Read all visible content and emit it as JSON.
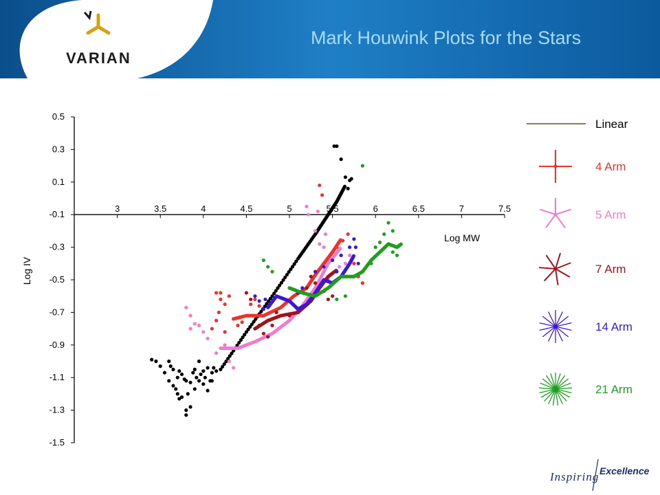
{
  "slide": {
    "title": "Mark Houwink Plots for the Stars",
    "logo_text": "VARIAN",
    "tagline_left": "Inspiring",
    "tagline_right": "Excellence"
  },
  "colors": {
    "banner_dark": "#0d5a9c",
    "banner_light": "#2a8ad0",
    "title": "#a9dbf5",
    "logo_gold": "#d4a017",
    "linear": "#8c7a52",
    "arm4": "#e8342a",
    "arm5": "#f07ccf",
    "arm7": "#a3121c",
    "arm14": "#3a19d6",
    "arm21": "#1f9e1f",
    "black": "#000000"
  },
  "chart_data": {
    "type": "scatter",
    "xlabel": "Log MW",
    "ylabel": "Log IV",
    "xlim": [
      2.5,
      7.5
    ],
    "ylim": [
      -1.5,
      0.5
    ],
    "x_ticks": [
      "3",
      "3.5",
      "4",
      "4.5",
      "5",
      "5.5",
      "6",
      "6.5",
      "7",
      "7.5"
    ],
    "y_ticks": [
      "0.5",
      "0.3",
      "0.1",
      "-0.1",
      "-0.3",
      "-0.5",
      "-0.7",
      "-0.9",
      "-1.1",
      "-1.3",
      "-1.5"
    ],
    "grid": false,
    "legend_position": "right",
    "legend": [
      {
        "label": "Linear",
        "color": "#8c7a52",
        "arms": 0
      },
      {
        "label": "4 Arm",
        "color": "#e8342a",
        "arms": 4
      },
      {
        "label": "5 Arm",
        "color": "#f07ccf",
        "arms": 5
      },
      {
        "label": "7 Arm",
        "color": "#a3121c",
        "arms": 7
      },
      {
        "label": "14 Arm",
        "color": "#3a19d6",
        "arms": 14
      },
      {
        "label": "21 Arm",
        "color": "#1f9e1f",
        "arms": 21
      }
    ],
    "series": [
      {
        "name": "Linear",
        "color": "#000000",
        "segments": [
          [
            [
              4.2,
              -1.05
            ],
            [
              4.5,
              -0.82
            ],
            [
              4.8,
              -0.6
            ],
            [
              5.1,
              -0.37
            ],
            [
              5.3,
              -0.22
            ],
            [
              5.45,
              -0.1
            ],
            [
              5.55,
              -0.02
            ],
            [
              5.65,
              0.08
            ]
          ]
        ],
        "scatter": [
          [
            3.4,
            -0.99
          ],
          [
            3.45,
            -1.0
          ],
          [
            3.5,
            -1.03
          ],
          [
            3.55,
            -1.07
          ],
          [
            3.6,
            -1.0
          ],
          [
            3.6,
            -1.12
          ],
          [
            3.65,
            -1.15
          ],
          [
            3.65,
            -1.05
          ],
          [
            3.7,
            -1.1
          ],
          [
            3.72,
            -1.06
          ],
          [
            3.75,
            -1.08
          ],
          [
            3.78,
            -1.11
          ],
          [
            3.8,
            -1.12
          ],
          [
            3.82,
            -1.2
          ],
          [
            3.85,
            -1.13
          ],
          [
            3.88,
            -1.07
          ],
          [
            3.9,
            -1.05
          ],
          [
            3.92,
            -1.1
          ],
          [
            3.95,
            -1.12
          ],
          [
            3.97,
            -1.08
          ],
          [
            4.0,
            -1.06
          ],
          [
            4.02,
            -1.1
          ],
          [
            4.05,
            -1.04
          ],
          [
            4.08,
            -1.12
          ],
          [
            4.1,
            -1.07
          ],
          [
            4.12,
            -1.04
          ],
          [
            4.15,
            -1.06
          ],
          [
            3.7,
            -1.2
          ],
          [
            3.72,
            -1.23
          ],
          [
            3.75,
            -1.22
          ],
          [
            3.8,
            -1.3
          ],
          [
            3.8,
            -1.33
          ],
          [
            3.85,
            -1.28
          ],
          [
            3.9,
            -1.17
          ],
          [
            4.0,
            -1.14
          ],
          [
            4.05,
            -1.18
          ],
          [
            3.62,
            -1.03
          ],
          [
            3.68,
            -1.17
          ],
          [
            3.95,
            -1.0
          ],
          [
            4.1,
            -1.12
          ],
          [
            5.52,
            0.32
          ],
          [
            5.55,
            0.32
          ],
          [
            5.6,
            0.24
          ],
          [
            5.65,
            0.13
          ],
          [
            5.7,
            0.11
          ],
          [
            5.68,
            0.06
          ],
          [
            5.72,
            0.12
          ]
        ]
      },
      {
        "name": "4 Arm",
        "color": "#e8342a",
        "segments": [
          [
            [
              4.35,
              -0.74
            ],
            [
              4.5,
              -0.72
            ],
            [
              4.7,
              -0.72
            ],
            [
              4.9,
              -0.67
            ],
            [
              5.05,
              -0.6
            ],
            [
              5.2,
              -0.55
            ],
            [
              5.3,
              -0.47
            ],
            [
              5.4,
              -0.4
            ],
            [
              5.5,
              -0.33
            ],
            [
              5.6,
              -0.25
            ]
          ]
        ],
        "scatter": [
          [
            4.15,
            -0.58
          ],
          [
            4.2,
            -0.62
          ],
          [
            4.25,
            -0.65
          ],
          [
            4.2,
            -0.58
          ],
          [
            4.18,
            -0.7
          ],
          [
            4.15,
            -0.75
          ],
          [
            4.1,
            -0.8
          ],
          [
            4.3,
            -0.6
          ],
          [
            4.25,
            -0.82
          ],
          [
            4.6,
            -0.62
          ],
          [
            4.65,
            -0.66
          ],
          [
            4.55,
            -0.65
          ],
          [
            5.35,
            0.08
          ],
          [
            5.38,
            0.02
          ],
          [
            5.55,
            -0.3
          ],
          [
            5.62,
            -0.26
          ],
          [
            5.68,
            -0.22
          ],
          [
            5.75,
            -0.4
          ],
          [
            5.8,
            -0.48
          ],
          [
            5.85,
            -0.52
          ],
          [
            4.4,
            -0.78
          ],
          [
            4.45,
            -0.76
          ]
        ]
      },
      {
        "name": "5 Arm",
        "color": "#f07ccf",
        "segments": [
          [
            [
              4.2,
              -0.92
            ],
            [
              4.4,
              -0.92
            ],
            [
              4.6,
              -0.88
            ],
            [
              4.8,
              -0.83
            ],
            [
              5.0,
              -0.75
            ],
            [
              5.15,
              -0.66
            ],
            [
              5.3,
              -0.55
            ],
            [
              5.45,
              -0.4
            ],
            [
              5.6,
              -0.3
            ]
          ]
        ],
        "scatter": [
          [
            3.8,
            -0.67
          ],
          [
            3.85,
            -0.72
          ],
          [
            3.95,
            -0.78
          ],
          [
            4.0,
            -0.82
          ],
          [
            4.05,
            -0.86
          ],
          [
            3.9,
            -0.77
          ],
          [
            3.85,
            -0.8
          ],
          [
            4.15,
            -0.95
          ],
          [
            4.25,
            -0.9
          ],
          [
            4.3,
            -1.0
          ],
          [
            4.35,
            -1.04
          ],
          [
            5.2,
            -0.05
          ],
          [
            5.22,
            -0.1
          ],
          [
            5.3,
            -0.2
          ],
          [
            5.33,
            -0.08
          ],
          [
            5.4,
            -0.3
          ],
          [
            5.42,
            -0.22
          ],
          [
            5.35,
            -0.28
          ],
          [
            5.6,
            -0.35
          ],
          [
            5.65,
            -0.4
          ],
          [
            5.7,
            -0.35
          ],
          [
            5.58,
            -0.42
          ],
          [
            5.45,
            -0.5
          ]
        ]
      },
      {
        "name": "7 Arm",
        "color": "#a3121c",
        "segments": [
          [
            [
              4.6,
              -0.8
            ],
            [
              4.75,
              -0.75
            ],
            [
              4.9,
              -0.72
            ],
            [
              5.1,
              -0.7
            ],
            [
              5.25,
              -0.63
            ],
            [
              5.35,
              -0.55
            ],
            [
              5.45,
              -0.48
            ],
            [
              5.55,
              -0.44
            ]
          ]
        ],
        "scatter": [
          [
            4.5,
            -0.58
          ],
          [
            4.55,
            -0.62
          ],
          [
            4.7,
            -0.83
          ],
          [
            4.75,
            -0.85
          ],
          [
            4.8,
            -0.78
          ],
          [
            4.85,
            -0.7
          ],
          [
            5.0,
            -0.72
          ],
          [
            5.1,
            -0.68
          ],
          [
            5.2,
            -0.55
          ],
          [
            5.25,
            -0.48
          ],
          [
            5.3,
            -0.52
          ],
          [
            5.4,
            -0.57
          ],
          [
            5.45,
            -0.62
          ],
          [
            5.5,
            -0.6
          ],
          [
            5.55,
            -0.5
          ],
          [
            4.65,
            -0.78
          ]
        ]
      },
      {
        "name": "14 Arm",
        "color": "#3a19d6",
        "segments": [
          [
            [
              4.75,
              -0.67
            ],
            [
              4.85,
              -0.6
            ],
            [
              5.0,
              -0.63
            ],
            [
              5.1,
              -0.68
            ],
            [
              5.2,
              -0.65
            ],
            [
              5.3,
              -0.58
            ],
            [
              5.4,
              -0.5
            ],
            [
              5.5,
              -0.52
            ],
            [
              5.6,
              -0.48
            ],
            [
              5.7,
              -0.4
            ],
            [
              5.75,
              -0.35
            ]
          ]
        ],
        "scatter": [
          [
            4.6,
            -0.6
          ],
          [
            4.65,
            -0.63
          ],
          [
            4.7,
            -0.68
          ],
          [
            4.72,
            -0.62
          ],
          [
            5.1,
            -0.58
          ],
          [
            5.15,
            -0.55
          ],
          [
            5.3,
            -0.45
          ],
          [
            5.4,
            -0.42
          ],
          [
            5.5,
            -0.38
          ],
          [
            5.55,
            -0.45
          ],
          [
            5.6,
            -0.35
          ],
          [
            5.7,
            -0.3
          ],
          [
            5.75,
            -0.25
          ],
          [
            5.77,
            -0.3
          ],
          [
            5.8,
            -0.4
          ]
        ]
      },
      {
        "name": "21 Arm",
        "color": "#1f9e1f",
        "segments": [
          [
            [
              5.0,
              -0.55
            ],
            [
              5.15,
              -0.58
            ],
            [
              5.3,
              -0.6
            ],
            [
              5.45,
              -0.55
            ],
            [
              5.6,
              -0.48
            ],
            [
              5.75,
              -0.48
            ],
            [
              5.85,
              -0.45
            ],
            [
              5.95,
              -0.38
            ],
            [
              6.05,
              -0.33
            ],
            [
              6.15,
              -0.28
            ],
            [
              6.25,
              -0.3
            ],
            [
              6.3,
              -0.28
            ]
          ]
        ],
        "scatter": [
          [
            4.75,
            -0.42
          ],
          [
            4.8,
            -0.45
          ],
          [
            4.7,
            -0.38
          ],
          [
            5.85,
            0.2
          ],
          [
            6.15,
            -0.15
          ],
          [
            6.2,
            -0.2
          ],
          [
            6.1,
            -0.22
          ],
          [
            6.0,
            -0.3
          ],
          [
            6.2,
            -0.33
          ],
          [
            6.25,
            -0.35
          ],
          [
            6.05,
            -0.27
          ],
          [
            5.95,
            -0.4
          ],
          [
            5.65,
            -0.6
          ],
          [
            5.55,
            -0.62
          ]
        ]
      }
    ]
  }
}
